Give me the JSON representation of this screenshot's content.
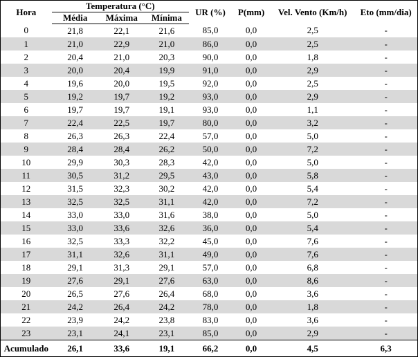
{
  "table": {
    "header": {
      "hora": "Hora",
      "temperatura": "Temperatura (°C)",
      "media": "Média",
      "maxima": "Máxima",
      "minima": "Mínima",
      "ur": "UR (%)",
      "p": "P(mm)",
      "vento": "Vel. Vento (Km/h)",
      "eto": "Eto (mm/dia)"
    },
    "rows": [
      [
        "0",
        "21,8",
        "22,1",
        "21,6",
        "85,0",
        "0,0",
        "2,5",
        "-"
      ],
      [
        "1",
        "21,0",
        "22,9",
        "21,0",
        "86,0",
        "0,0",
        "2,5",
        "-"
      ],
      [
        "2",
        "20,4",
        "21,0",
        "20,3",
        "90,0",
        "0,0",
        "1,8",
        "-"
      ],
      [
        "3",
        "20,0",
        "20,4",
        "19,9",
        "91,0",
        "0,0",
        "2,9",
        "-"
      ],
      [
        "4",
        "19,6",
        "20,0",
        "19,5",
        "92,0",
        "0,0",
        "2,5",
        "-"
      ],
      [
        "5",
        "19,2",
        "19,7",
        "19,2",
        "93,0",
        "0,0",
        "2,9",
        "-"
      ],
      [
        "6",
        "19,7",
        "19,7",
        "19,1",
        "93,0",
        "0,0",
        "1,1",
        "-"
      ],
      [
        "7",
        "22,4",
        "22,5",
        "19,7",
        "80,0",
        "0,0",
        "3,2",
        "-"
      ],
      [
        "8",
        "26,3",
        "26,3",
        "22,4",
        "57,0",
        "0,0",
        "5,0",
        "-"
      ],
      [
        "9",
        "28,4",
        "28,4",
        "26,2",
        "50,0",
        "0,0",
        "7,2",
        "-"
      ],
      [
        "10",
        "29,9",
        "30,3",
        "28,3",
        "42,0",
        "0,0",
        "5,0",
        "-"
      ],
      [
        "11",
        "30,5",
        "31,2",
        "29,5",
        "43,0",
        "0,0",
        "5,8",
        "-"
      ],
      [
        "12",
        "31,5",
        "32,3",
        "30,2",
        "42,0",
        "0,0",
        "5,4",
        "-"
      ],
      [
        "13",
        "32,5",
        "32,5",
        "31,1",
        "42,0",
        "0,0",
        "7,2",
        "-"
      ],
      [
        "14",
        "33,0",
        "33,0",
        "31,6",
        "38,0",
        "0,0",
        "5,0",
        "-"
      ],
      [
        "15",
        "33,0",
        "33,6",
        "32,6",
        "36,0",
        "0,0",
        "5,4",
        "-"
      ],
      [
        "16",
        "32,5",
        "33,3",
        "32,2",
        "45,0",
        "0,0",
        "7,6",
        "-"
      ],
      [
        "17",
        "31,1",
        "32,6",
        "31,1",
        "49,0",
        "0,0",
        "7,6",
        "-"
      ],
      [
        "18",
        "29,1",
        "31,3",
        "29,1",
        "57,0",
        "0,0",
        "6,8",
        "-"
      ],
      [
        "19",
        "27,6",
        "29,1",
        "27,6",
        "63,0",
        "0,0",
        "8,6",
        "-"
      ],
      [
        "20",
        "26,5",
        "27,6",
        "26,4",
        "68,0",
        "0,0",
        "3,6",
        "-"
      ],
      [
        "21",
        "24,2",
        "26,4",
        "24,2",
        "78,0",
        "0,0",
        "1,8",
        "-"
      ],
      [
        "22",
        "23,9",
        "24,2",
        "23,8",
        "83,0",
        "0,0",
        "3,6",
        "-"
      ],
      [
        "23",
        "23,1",
        "24,1",
        "23,1",
        "85,0",
        "0,0",
        "2,9",
        "-"
      ]
    ],
    "total": [
      "Acumulado",
      "26,1",
      "33,6",
      "19,1",
      "66,2",
      "0,0",
      "4,5",
      "6,3"
    ]
  }
}
